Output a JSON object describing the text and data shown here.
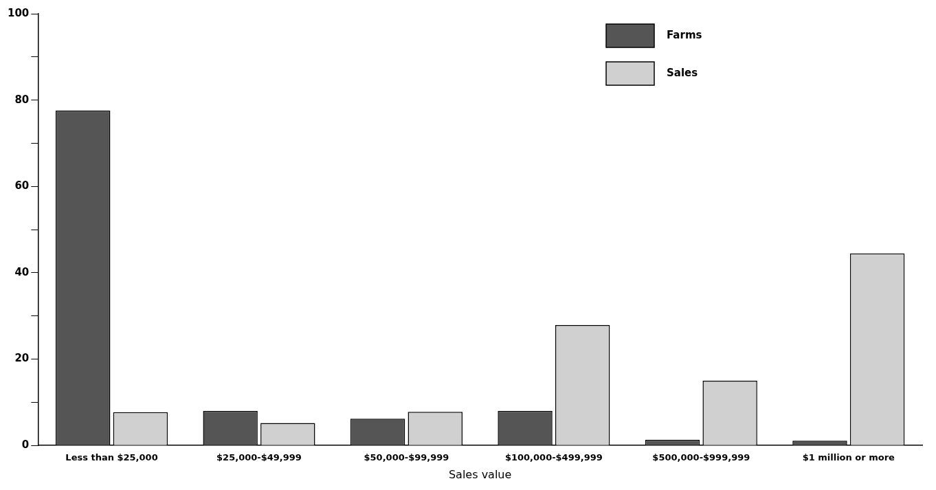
{
  "chart_data": {
    "type": "bar",
    "xlabel": "Sales value",
    "categories": [
      "Less than $25,000",
      "$25,000-$49,999",
      "$50,000-$99,999",
      "$100,000-$499,999",
      "$500,000-$999,999",
      "$1 million or more"
    ],
    "series": [
      {
        "name": "Farms",
        "color": "#555555",
        "values": [
          77.6,
          8.0,
          6.2,
          8.0,
          1.3,
          1.1
        ]
      },
      {
        "name": "Sales",
        "color": "#d0d0d0",
        "values": [
          7.7,
          5.2,
          7.8,
          27.9,
          15.0,
          44.5
        ]
      }
    ],
    "ylim": [
      0,
      100
    ],
    "yticks": [
      0,
      {
        "value": 10,
        "label": null
      },
      20,
      {
        "value": 30,
        "label": null
      },
      40,
      {
        "value": 50,
        "label": null
      },
      60,
      {
        "value": 70,
        "label": null
      },
      80,
      {
        "value": 90,
        "label": null
      },
      100
    ],
    "grid": false,
    "legend": "top right"
  }
}
